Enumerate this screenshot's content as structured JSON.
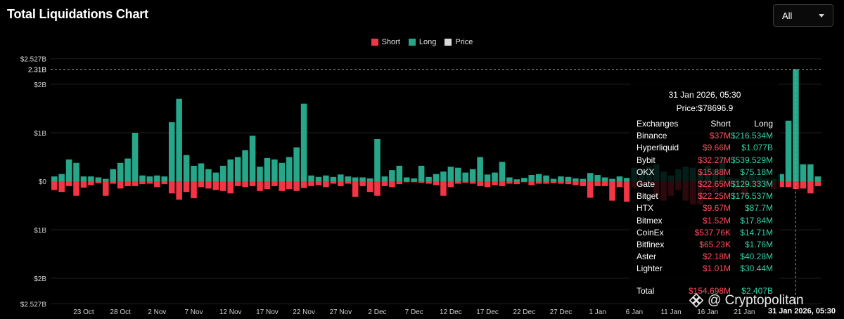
{
  "header": {
    "title": "Total Liquidations Chart"
  },
  "range_select": {
    "value": "All"
  },
  "legend": [
    {
      "label": "Short",
      "color": "#f23645"
    },
    {
      "label": "Long",
      "color": "#26a78a"
    },
    {
      "label": "Price",
      "color": "#d9d9d9"
    }
  ],
  "tooltip": {
    "datetime": "31 Jan 2026, 05:30",
    "price": "Price:$78696.9",
    "columns": [
      "Exchanges",
      "Short",
      "Long"
    ],
    "rows": [
      [
        "Binance",
        "$37M",
        "$216.534M"
      ],
      [
        "Hyperliquid",
        "$9.66M",
        "$1.077B"
      ],
      [
        "Bybit",
        "$32.27M",
        "$539.529M"
      ],
      [
        "OKX",
        "$15.88M",
        "$75.18M"
      ],
      [
        "Gate",
        "$22.65M",
        "$129.333M"
      ],
      [
        "Bitget",
        "$22.25M",
        "$176.537M"
      ],
      [
        "HTX",
        "$9.67M",
        "$87.7M"
      ],
      [
        "Bitmex",
        "$1.52M",
        "$17.84M"
      ],
      [
        "CoinEx",
        "$537.76K",
        "$14.71M"
      ],
      [
        "Bitfinex",
        "$65.23K",
        "$1.76M"
      ],
      [
        "Aster",
        "$2.18M",
        "$40.28M"
      ],
      [
        "Lighter",
        "$1.01M",
        "$30.44M"
      ]
    ],
    "total": [
      "Total",
      "$154.698M",
      "$2.407B"
    ]
  },
  "watermark": "@ Cryptopolitan",
  "crosshair_time_label": "31 Jan 2026, 05:30",
  "chart_data": {
    "type": "bar",
    "y_tick_labels": [
      "$2.527B",
      "$2B",
      "$1B",
      "$0",
      "$1B",
      "$2B",
      "$2.527B"
    ],
    "y_ticks": [
      2.527,
      2,
      1,
      0,
      -1,
      -2,
      -2.527
    ],
    "ylim": [
      -2.527,
      2.527
    ],
    "crosshair_value": 2.31,
    "crosshair_label": "2.31B",
    "x_tick_labels": [
      "23 Oct",
      "28 Oct",
      "2 Nov",
      "7 Nov",
      "12 Nov",
      "17 Nov",
      "22 Nov",
      "27 Nov",
      "2 Dec",
      "7 Dec",
      "12 Dec",
      "17 Dec",
      "22 Dec",
      "27 Dec",
      "1 Jan",
      "6 Jan",
      "11 Jan",
      "16 Jan",
      "21 Jan",
      "26 Jan"
    ],
    "x_tick_index": [
      4,
      9,
      14,
      19,
      24,
      29,
      34,
      39,
      44,
      49,
      54,
      59,
      64,
      69,
      74,
      79,
      84,
      89,
      94,
      99
    ],
    "series": [
      {
        "name": "Long",
        "color": "#26a78a",
        "values": [
          0.1,
          0.15,
          0.45,
          0.38,
          0.1,
          0.1,
          0.08,
          0.05,
          0.25,
          0.38,
          0.47,
          1.0,
          0.12,
          0.1,
          0.12,
          0.1,
          1.22,
          1.7,
          0.54,
          0.32,
          0.37,
          0.25,
          0.18,
          0.32,
          0.45,
          0.5,
          0.64,
          0.94,
          0.3,
          0.48,
          0.45,
          0.38,
          0.5,
          0.7,
          1.6,
          0.12,
          0.09,
          0.12,
          0.09,
          0.14,
          0.1,
          0.08,
          0.08,
          0.06,
          0.87,
          0.1,
          0.23,
          0.32,
          0.08,
          0.06,
          0.32,
          0.09,
          0.15,
          0.2,
          0.3,
          0.28,
          0.18,
          0.25,
          0.5,
          0.14,
          0.18,
          0.4,
          0.08,
          0.04,
          0.07,
          0.13,
          0.15,
          0.12,
          0.05,
          0.1,
          0.09,
          0.06,
          0.05,
          0.17,
          0.13,
          0.08,
          0.05,
          0.1,
          0.07,
          0.28,
          0.25,
          0.3,
          0.35,
          0.2,
          0.12,
          0.25,
          0.3,
          0.28,
          0.2,
          0.32,
          0.25,
          0.5,
          0.08,
          0.06,
          0.1,
          0.15,
          0.1,
          0.06,
          0.05,
          0.15,
          1.25,
          2.31,
          0.35,
          0.35,
          0.1
        ]
      },
      {
        "name": "Short",
        "color": "#f23645",
        "values": [
          0.18,
          0.22,
          0.1,
          0.3,
          0.13,
          0.08,
          0.04,
          0.3,
          0.05,
          0.15,
          0.1,
          0.1,
          0.06,
          0.05,
          0.12,
          0.06,
          0.25,
          0.38,
          0.22,
          0.35,
          0.12,
          0.15,
          0.18,
          0.2,
          0.25,
          0.1,
          0.12,
          0.1,
          0.2,
          0.16,
          0.1,
          0.2,
          0.16,
          0.2,
          0.14,
          0.1,
          0.08,
          0.12,
          0.05,
          0.1,
          0.05,
          0.32,
          0.1,
          0.22,
          0.3,
          0.1,
          0.12,
          0.06,
          0.02,
          0.02,
          0.03,
          0.05,
          0.08,
          0.3,
          0.12,
          0.05,
          0.03,
          0.05,
          0.1,
          0.12,
          0.08,
          0.1,
          0.05,
          0.06,
          0.02,
          0.08,
          0.05,
          0.05,
          0.04,
          0.05,
          0.06,
          0.08,
          0.1,
          0.34,
          0.1,
          0.1,
          0.4,
          0.12,
          0.42,
          0.14,
          0.1,
          0.05,
          0.3,
          0.4,
          0.3,
          0.18,
          0.4,
          0.48,
          0.48,
          0.2,
          0.22,
          0.1,
          0.1,
          0.18,
          0.28,
          0.12,
          0.1,
          0.08,
          0.16,
          0.12,
          0.12,
          0.16,
          0.15,
          0.25,
          0.1
        ]
      }
    ],
    "legend_position": "top-center"
  }
}
